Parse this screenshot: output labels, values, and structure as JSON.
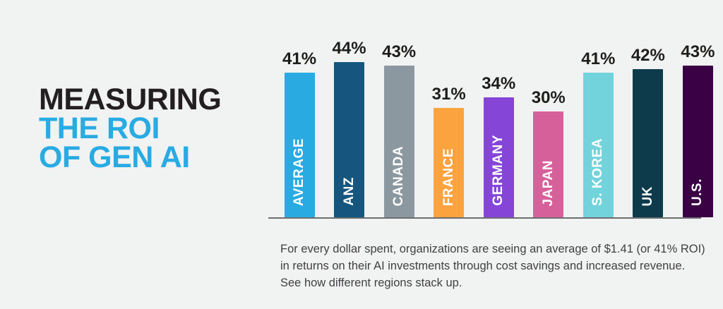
{
  "title": {
    "line1": "MEASURING",
    "line2": "THE ROI",
    "line3": "OF GEN AI"
  },
  "caption": {
    "lines": [
      "For every dollar spent, organizations are seeing an average of $1.41 (or 41% ROI)",
      "in returns on their AI investments through cost savings and increased revenue.",
      "See how different regions stack up."
    ]
  },
  "colors": {
    "background": "#f1f2f2",
    "title_black": "#231f20",
    "title_blue": "#29abe2",
    "axis_line": "#6d6e71",
    "value_label": "#1d1d1b",
    "bar_label": "#ffffff",
    "caption_text": "#414042"
  },
  "chart_data": {
    "type": "bar",
    "orientation": "vertical",
    "categories": [
      "AVERAGE",
      "ANZ",
      "CANADA",
      "FRANCE",
      "GERMANY",
      "JAPAN",
      "S. KOREA",
      "UK",
      "U.S."
    ],
    "values": [
      41,
      44,
      43,
      31,
      34,
      30,
      41,
      42,
      43
    ],
    "value_labels": [
      "41%",
      "44%",
      "43%",
      "31%",
      "34%",
      "30%",
      "41%",
      "42%",
      "43%"
    ],
    "bar_colors": [
      "#29abe2",
      "#16567e",
      "#8c98a0",
      "#fba33e",
      "#8546d8",
      "#d6619a",
      "#73d3dc",
      "#0d3b4c",
      "#3a0245"
    ],
    "unit": "%",
    "ylim": [
      0,
      50
    ],
    "grid": false,
    "legend": false,
    "title": "MEASURING THE ROI OF GEN AI"
  }
}
